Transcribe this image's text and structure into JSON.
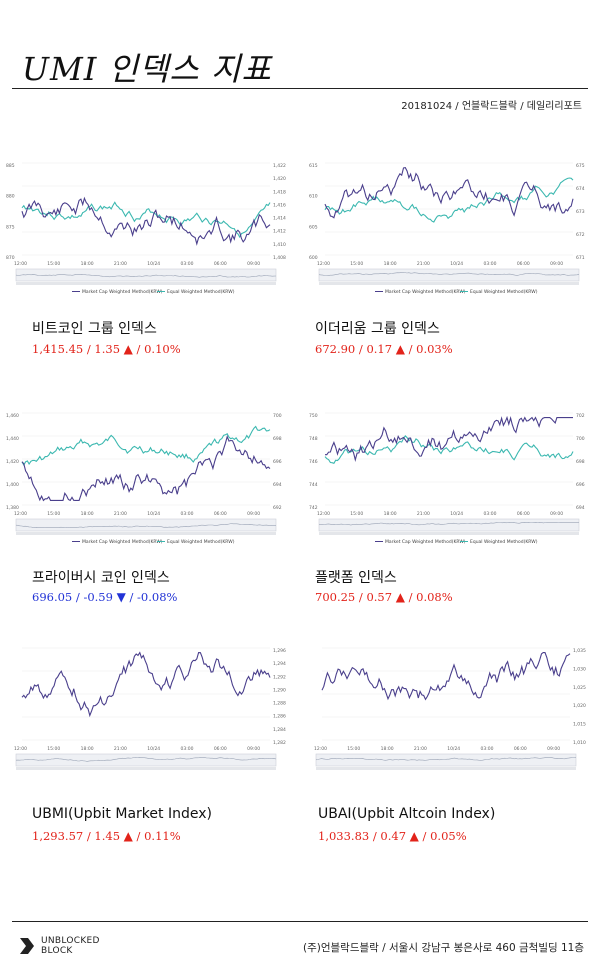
{
  "page_title": "UMI 인덱스 지표",
  "meta_line": "20181024 / 언블락드블락 / 데일리리포트",
  "legend": {
    "series_a": "Market Cap Weighted Method(KRW)",
    "series_b": "Equal Weighted Method(KRW)"
  },
  "x_ticks": [
    "12:00",
    "15:00",
    "18:00",
    "21:00",
    "10/24",
    "03:00",
    "06:00",
    "09:00"
  ],
  "colors": {
    "series_a": "#4a3f8c",
    "series_b": "#3cb8b0",
    "up": "#e2231a",
    "down": "#2233d6"
  },
  "indices": [
    {
      "name": "비트코인 그룹 인덱스",
      "value": "1,415.45",
      "change": "1.35",
      "arrow": "▲",
      "pct": "0.10%",
      "direction": "up",
      "left_ticks": [
        "885",
        "880",
        "875",
        "870"
      ],
      "right_ticks": [
        "1,422",
        "1,420",
        "1,418",
        "1,416",
        "1,414",
        "1,412",
        "1,410",
        "1,408"
      ]
    },
    {
      "name": "이더리움 그룹 인덱스",
      "value": "672.90",
      "change": "0.17",
      "arrow": "▲",
      "pct": "0.03%",
      "direction": "up",
      "left_ticks": [
        "615",
        "610",
        "605",
        "600"
      ],
      "right_ticks": [
        "675",
        "674",
        "673",
        "672",
        "671"
      ]
    },
    {
      "name": "프라이버시 코인 인덱스",
      "value": "696.05",
      "change": "-0.59",
      "arrow": "▼",
      "pct": "-0.08%",
      "direction": "down",
      "left_ticks": [
        "1,460",
        "1,440",
        "1,420",
        "1,400",
        "1,380"
      ],
      "right_ticks": [
        "700",
        "698",
        "696",
        "694",
        "692"
      ]
    },
    {
      "name": "플랫폼 인덱스",
      "value": "700.25",
      "change": "0.57",
      "arrow": "▲",
      "pct": "0.08%",
      "direction": "up",
      "left_ticks": [
        "750",
        "748",
        "746",
        "744",
        "742"
      ],
      "right_ticks": [
        "702",
        "700",
        "698",
        "696",
        "694"
      ]
    },
    {
      "name": "UBMI(Upbit Market Index)",
      "value": "1,293.57",
      "change": "1.45",
      "arrow": "▲",
      "pct": "0.11%",
      "direction": "up",
      "left_ticks": [],
      "right_ticks": [
        "1,296",
        "1,294",
        "1,292",
        "1,290",
        "1,288",
        "1,286",
        "1,284",
        "1,282"
      ]
    },
    {
      "name": "UBAI(Upbit Altcoin Index)",
      "value": "1,033.83",
      "change": "0.47",
      "arrow": "▲",
      "pct": "0.05%",
      "direction": "up",
      "left_ticks": [],
      "right_ticks": [
        "1,035",
        "1,030",
        "1,025",
        "1,020",
        "1,015",
        "1,010"
      ]
    }
  ],
  "footer": {
    "logo_line1": "UNBLOCKED",
    "logo_line2": "BLOCK",
    "address": "(주)언블락드블락 / 서울시 강남구 봉은사로 460 금척빌딩 11층"
  }
}
